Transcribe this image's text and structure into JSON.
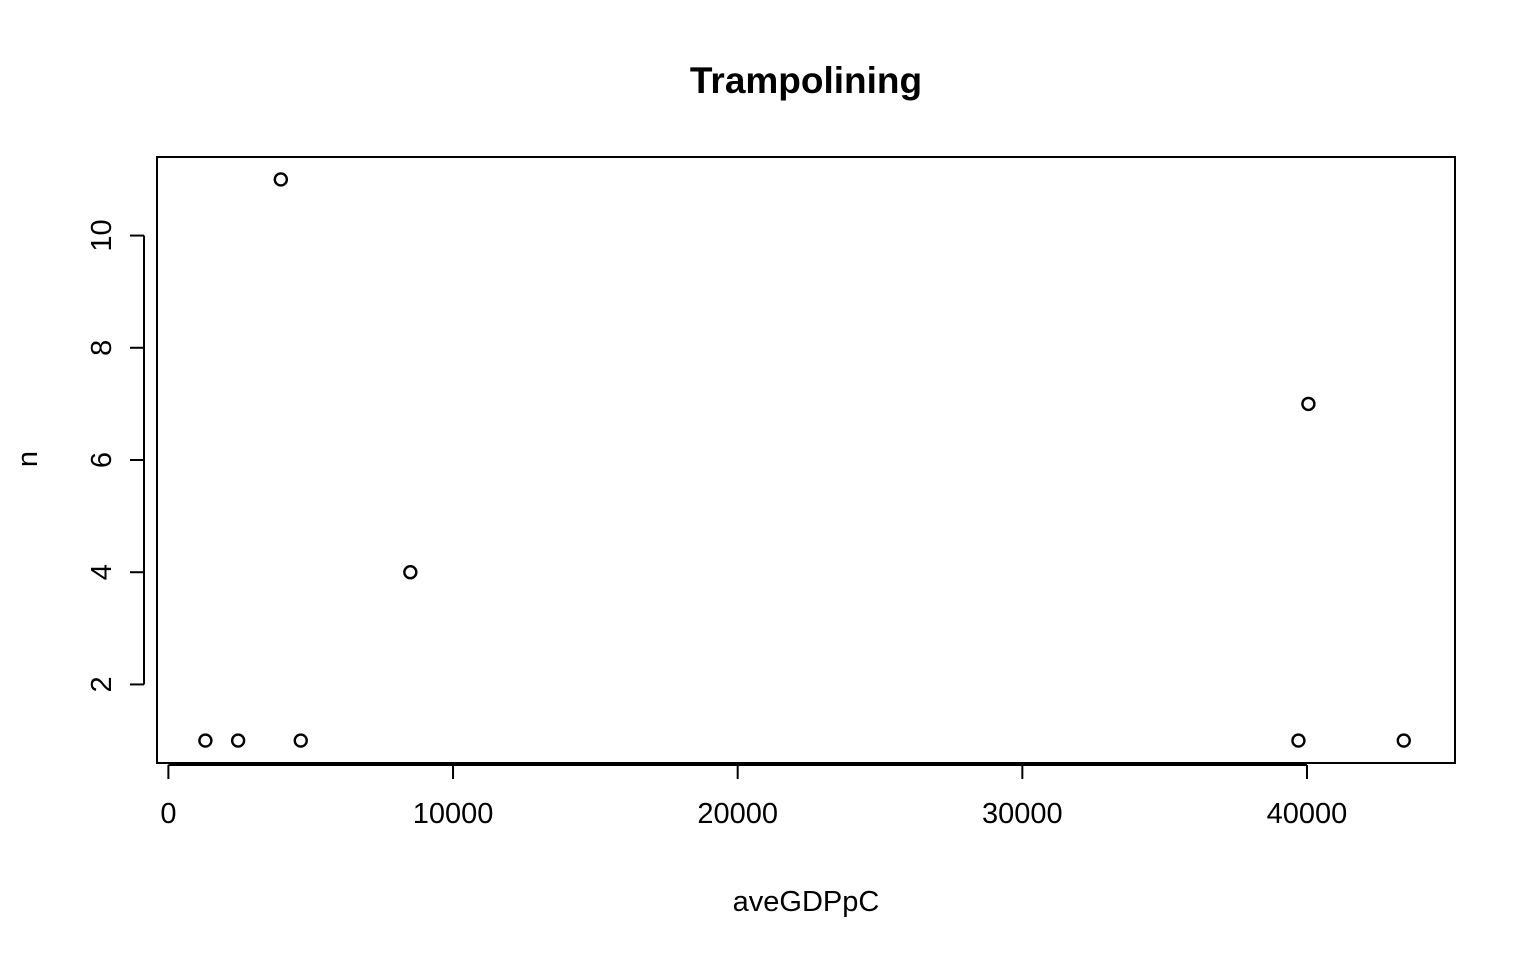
{
  "chart_data": {
    "type": "scatter",
    "title": "Trampolining",
    "xlabel": "aveGDPpC",
    "ylabel": "n",
    "xlim": [
      -400,
      45200
    ],
    "ylim": [
      0.6,
      11.4
    ],
    "x_ticks": [
      0,
      10000,
      20000,
      30000,
      40000
    ],
    "y_ticks": [
      2,
      4,
      6,
      8,
      10
    ],
    "x_tick_labels": [
      "0",
      "10000",
      "20000",
      "30000",
      "40000"
    ],
    "y_tick_labels": [
      "2",
      "4",
      "6",
      "8",
      "10"
    ],
    "grid": false,
    "legend": "none",
    "points": [
      {
        "x": 1300,
        "y": 1
      },
      {
        "x": 2450,
        "y": 1
      },
      {
        "x": 3950,
        "y": 11
      },
      {
        "x": 4650,
        "y": 1
      },
      {
        "x": 8500,
        "y": 4
      },
      {
        "x": 39700,
        "y": 1
      },
      {
        "x": 40050,
        "y": 7
      },
      {
        "x": 43400,
        "y": 1
      }
    ]
  }
}
